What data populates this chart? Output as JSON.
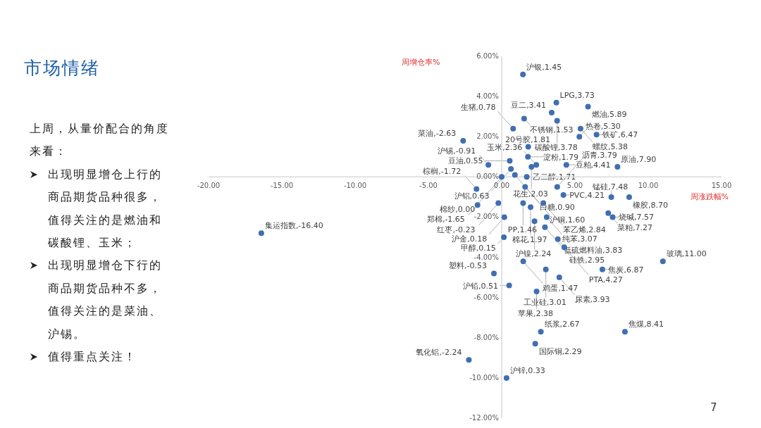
{
  "chart_data": {
    "type": "scatter",
    "title": "市场情绪",
    "xlabel": "周涨跌幅%",
    "ylabel": "周增仓率%",
    "annotations": [
      "上周，从量价配合的角度来看：",
      "出现明显增仓上行的商品期货品种很多，值得关注的是燃油和碳酸锂、玉米；",
      "出现明显增仓下行的商品期货品种不多，值得关注的是菜油、沪锡。",
      "值得重点关注！",
      "7",
      {
        "text": "沪银,1.45",
        "x": 1.45,
        "y": 5.1
      },
      {
        "text": "LPG,3.73",
        "x": 3.73,
        "y": 3.7
      },
      {
        "text": "豆二,3.41",
        "x": 3.41,
        "y": 3.2
      },
      {
        "text": "碳酸锂,3.78",
        "x": 3.78,
        "y": 2.8
      },
      {
        "text": "燃油,5.89",
        "x": 5.89,
        "y": 3.5
      },
      {
        "text": "不锈钢,1.53",
        "x": 1.53,
        "y": 2.9
      },
      {
        "text": "生猪,0.78",
        "x": 0.78,
        "y": 2.4
      },
      {
        "text": "螺纹,5.38",
        "x": 5.38,
        "y": 2.4
      },
      {
        "text": "热卷,5.30",
        "x": 5.3,
        "y": 2.0
      },
      {
        "text": "铁矿,6.47",
        "x": 6.47,
        "y": 2.1
      },
      {
        "text": "菜油,-2.63",
        "x": -2.63,
        "y": 1.8
      },
      {
        "text": "20号胶,1.81",
        "x": 1.81,
        "y": 1.5
      },
      {
        "text": "淀粉,1.79",
        "x": 1.79,
        "y": 1.0
      },
      {
        "text": "豆油,0.55",
        "x": 0.55,
        "y": 0.8
      },
      {
        "text": "沪锡,-0.91",
        "x": -0.91,
        "y": 0.6
      },
      {
        "text": "沪铝,0.63",
        "x": 0.63,
        "y": 0.4
      },
      {
        "text": "玉米,2.36",
        "x": 2.36,
        "y": 0.6
      },
      {
        "text": "花生,2.03",
        "x": 2.03,
        "y": 0.5
      },
      {
        "text": "豆粕,4.41",
        "x": 4.41,
        "y": 0.6
      },
      {
        "text": "原油,7.90",
        "x": 7.9,
        "y": 0.5
      },
      {
        "text": "棉纱,0.00",
        "x": 0.0,
        "y": 0.0
      },
      {
        "text": "白糖,0.90",
        "x": 0.9,
        "y": 0.1
      },
      {
        "text": "乙二醇,1.71",
        "x": 1.71,
        "y": 0.0
      },
      {
        "text": "棕榈,-1.72",
        "x": -1.72,
        "y": -0.6
      },
      {
        "text": "郑棉,-1.65",
        "x": -1.65,
        "y": -1.4
      },
      {
        "text": "红枣,-0.23",
        "x": -0.23,
        "y": -1.3
      },
      {
        "text": "沪铜,1.60",
        "x": 1.6,
        "y": -0.5
      },
      {
        "text": "PP,1.46",
        "x": 1.46,
        "y": -1.3
      },
      {
        "text": "棉花,1.97",
        "x": 1.97,
        "y": -1.5
      },
      {
        "text": "沥青,3.79",
        "x": 3.79,
        "y": -0.5
      },
      {
        "text": "PVC,4.21",
        "x": 4.21,
        "y": -0.9
      },
      {
        "text": "苯乙烯,2.84",
        "x": 2.84,
        "y": -1.3
      },
      {
        "text": "锰硅,7.48",
        "x": 7.48,
        "y": -1.0
      },
      {
        "text": "橡胶,8.70",
        "x": 8.7,
        "y": -1.0
      },
      {
        "text": "菜粕,7.27",
        "x": 7.27,
        "y": -1.8
      },
      {
        "text": "烧碱,7.57",
        "x": 7.57,
        "y": -2.0
      },
      {
        "text": "沪金,0.18",
        "x": 0.18,
        "y": -2.0
      },
      {
        "text": "沪镍,2.24",
        "x": 2.24,
        "y": -2.2
      },
      {
        "text": "纯苯,3.07",
        "x": 3.07,
        "y": -2.0
      },
      {
        "text": "硅铁,2.95",
        "x": 2.95,
        "y": -2.5
      },
      {
        "text": "低硫燃料油,3.83",
        "x": 3.83,
        "y": -3.1
      },
      {
        "text": "PTA,4.27",
        "x": 4.27,
        "y": -3.5
      },
      {
        "text": "甲醇,0.15",
        "x": 0.15,
        "y": -3.0
      },
      {
        "text": "鸡蛋,1.47",
        "x": 1.47,
        "y": -4.2
      },
      {
        "text": "塑料,-0.53",
        "x": -0.53,
        "y": -4.8
      },
      {
        "text": "工业硅,3.01",
        "x": 3.01,
        "y": -4.6
      },
      {
        "text": "尿素,3.93",
        "x": 3.93,
        "y": -5.0
      },
      {
        "text": "焦炭,6.87",
        "x": 6.87,
        "y": -4.6
      },
      {
        "text": "沪铅,0.51",
        "x": 0.51,
        "y": -5.4
      },
      {
        "text": "苹果,2.38",
        "x": 2.38,
        "y": -5.7
      },
      {
        "text": "玻璃,11.00",
        "x": 11.0,
        "y": -4.2
      },
      {
        "text": "纸浆,2.67",
        "x": 2.67,
        "y": -7.7
      },
      {
        "text": "国际铜,2.29",
        "x": 2.29,
        "y": -8.3
      },
      {
        "text": "焦煤,8.41",
        "x": 8.41,
        "y": -7.7
      },
      {
        "text": "氧化铝,-2.24",
        "x": -2.24,
        "y": -9.1
      },
      {
        "text": "沪锌,0.33",
        "x": 0.33,
        "y": -10.0
      },
      {
        "text": "集运指数,-16.40",
        "x": -16.4,
        "y": -2.8
      }
    ],
    "color": "#3f6fb0",
    "marker": "circle",
    "grid": false,
    "x": [
      1.45,
      3.73,
      3.41,
      3.78,
      5.89,
      1.53,
      0.78,
      5.38,
      5.3,
      6.47,
      -2.63,
      1.81,
      1.79,
      0.55,
      -0.91,
      0.63,
      2.36,
      2.03,
      4.41,
      7.9,
      0.0,
      0.9,
      1.71,
      -1.72,
      -1.65,
      -0.23,
      1.6,
      1.46,
      1.97,
      3.79,
      4.21,
      2.84,
      7.48,
      8.7,
      7.27,
      7.57,
      0.18,
      2.24,
      3.07,
      2.95,
      3.83,
      4.27,
      0.15,
      1.47,
      -0.53,
      3.01,
      3.93,
      6.87,
      0.51,
      2.38,
      11.0,
      2.67,
      2.29,
      8.41,
      -2.24,
      0.33,
      -16.4
    ],
    "values": [
      5.1,
      3.7,
      3.2,
      2.8,
      3.5,
      2.9,
      2.4,
      2.4,
      2.0,
      2.1,
      1.8,
      1.5,
      1.0,
      0.8,
      0.6,
      0.4,
      0.6,
      0.5,
      0.6,
      0.5,
      0.0,
      0.1,
      0.0,
      -0.6,
      -1.4,
      -1.3,
      -0.5,
      -1.3,
      -1.5,
      -0.5,
      -0.9,
      -1.3,
      -1.0,
      -1.0,
      -1.8,
      -2.0,
      -2.0,
      -2.2,
      -2.0,
      -2.5,
      -3.1,
      -3.5,
      -3.0,
      -4.2,
      -4.8,
      -4.6,
      -5.0,
      -4.6,
      -5.4,
      -5.7,
      -4.2,
      -7.7,
      -8.3,
      -7.7,
      -9.1,
      -10.0,
      -2.8
    ],
    "xlim": [
      -20,
      15
    ],
    "ylim": [
      -12,
      6
    ],
    "xticks": [
      {
        "value": -20,
        "label": "-20.00"
      },
      {
        "value": -15,
        "label": "-15.00"
      },
      {
        "value": -10,
        "label": "-10.00"
      },
      {
        "value": -5,
        "label": "-5.00"
      },
      {
        "value": 0,
        "label": "0.00"
      },
      {
        "value": 5,
        "label": "5.00"
      },
      {
        "value": 10,
        "label": "10.00"
      },
      {
        "value": 15,
        "label": "15.00"
      }
    ],
    "yticks": [
      {
        "value": -12,
        "label": "-12.00%"
      },
      {
        "value": -10,
        "label": "-10.00%"
      },
      {
        "value": -8,
        "label": "-8.00%"
      },
      {
        "value": -6,
        "label": "-6.00%"
      },
      {
        "value": -4,
        "label": "-4.00%"
      },
      {
        "value": -2,
        "label": "-2.00%"
      },
      {
        "value": 0,
        "label": "0.00%"
      },
      {
        "value": 2,
        "label": "2.00%"
      },
      {
        "value": 4,
        "label": "4.00%"
      },
      {
        "value": 6,
        "label": "6.00%"
      }
    ]
  }
}
